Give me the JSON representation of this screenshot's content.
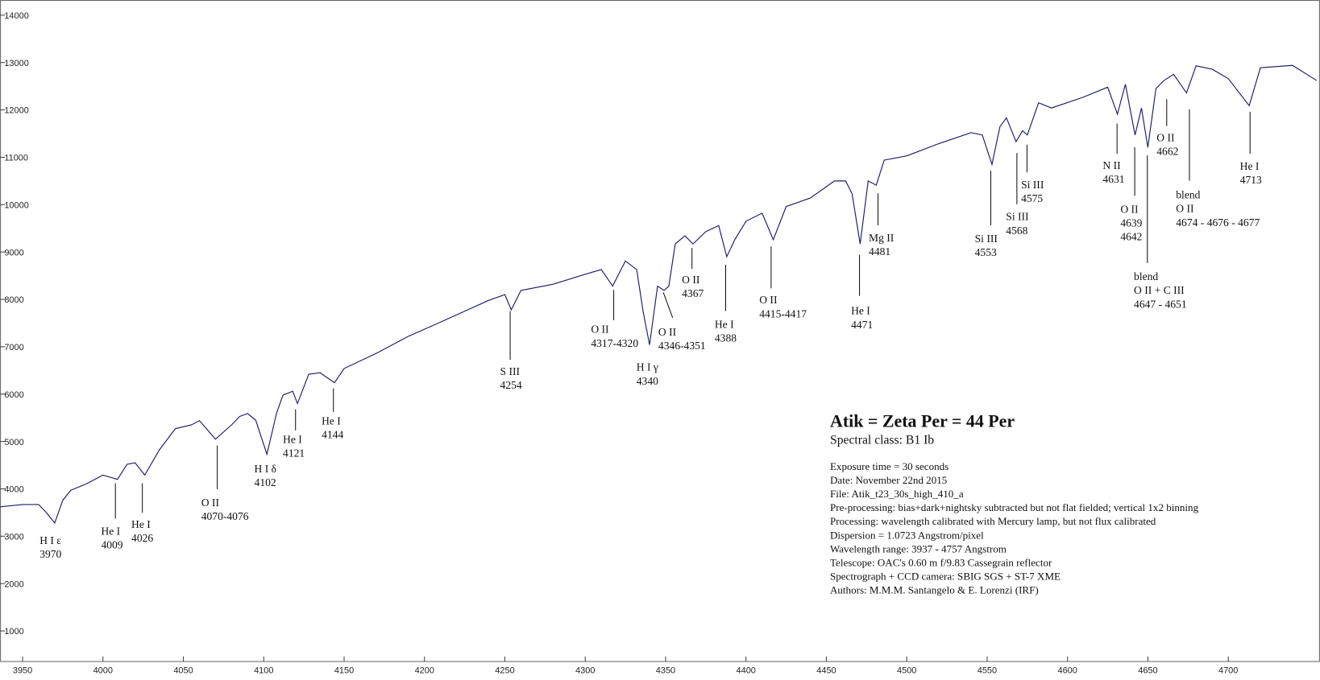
{
  "chart_data": {
    "type": "line",
    "title": "Atik = Zeta Per = 44 Per",
    "subtitle": "Spectral class:  B1 Ib",
    "notes": [
      "Exposure time = 30 seconds",
      "Date:  November 22nd 2015",
      "File:  Atik_t23_30s_high_410_a",
      "Pre-processing:  bias+dark+nightsky subtracted but not flat fielded; vertical 1x2 binning",
      "Processing:  wavelength calibrated with Mercury lamp, but not flux calibrated",
      "Dispersion = 1.0723 Angstrom/pixel",
      "Wavelength range:  3937 - 4757 Angstrom",
      "Telescope:  OAC's 0.60 m f/9.83 Cassegrain reflector",
      "Spectrograph + CCD camera:  SBIG SGS + ST-7 XME",
      "Authors:  M.M.M. Santangelo & E. Lorenzi (IRF)"
    ],
    "color": "#1c1c6a",
    "xlim": [
      3936,
      4757
    ],
    "ylim": [
      355,
      14320
    ],
    "xticks": [
      3950,
      4000,
      4050,
      4100,
      4150,
      4200,
      4250,
      4300,
      4350,
      4400,
      4450,
      4500,
      4550,
      4600,
      4650,
      4700
    ],
    "yticks": [
      1000,
      2000,
      3000,
      4000,
      5000,
      6000,
      7000,
      8000,
      9000,
      10000,
      11000,
      12000,
      13000,
      14000
    ],
    "x": [
      3936,
      3950,
      3960,
      3965,
      3970,
      3975,
      3980,
      3990,
      4000,
      4009,
      4015,
      4020,
      4026,
      4035,
      4045,
      4055,
      4060,
      4070,
      4080,
      4085,
      4090,
      4095,
      4102,
      4108,
      4112,
      4118,
      4121,
      4128,
      4135,
      4144,
      4150,
      4170,
      4190,
      4210,
      4240,
      4250,
      4254,
      4260,
      4280,
      4300,
      4310,
      4317,
      4325,
      4332,
      4336,
      4340,
      4345,
      4349,
      4352,
      4356,
      4362,
      4367,
      4375,
      4383,
      4388,
      4393,
      4400,
      4410,
      4417,
      4425,
      4440,
      4455,
      4462,
      4466,
      4471,
      4476,
      4481,
      4486,
      4500,
      4520,
      4540,
      4547,
      4553,
      4558,
      4562,
      4568,
      4572,
      4575,
      4582,
      4590,
      4610,
      4625,
      4631,
      4636,
      4642,
      4646,
      4650,
      4655,
      4660,
      4666,
      4674,
      4680,
      4690,
      4700,
      4713,
      4720,
      4740,
      4755
    ],
    "values": [
      3620,
      3670,
      3670,
      3490,
      3280,
      3760,
      3970,
      4110,
      4290,
      4200,
      4520,
      4550,
      4290,
      4820,
      5270,
      5350,
      5440,
      5050,
      5350,
      5530,
      5590,
      5450,
      4730,
      5600,
      5980,
      6060,
      5800,
      6420,
      6450,
      6240,
      6540,
      6860,
      7220,
      7520,
      7980,
      8100,
      7780,
      8190,
      8320,
      8530,
      8630,
      8280,
      8810,
      8630,
      7750,
      7040,
      8280,
      8190,
      8280,
      9170,
      9340,
      9170,
      9430,
      9560,
      8900,
      9260,
      9650,
      9820,
      9260,
      9960,
      10140,
      10500,
      10500,
      10230,
      9170,
      10500,
      10410,
      10940,
      11030,
      11290,
      11520,
      11470,
      10850,
      11650,
      11830,
      11330,
      11560,
      11470,
      12150,
      12040,
      12270,
      12480,
      11910,
      12540,
      11470,
      12040,
      11210,
      12450,
      12620,
      12750,
      12360,
      12930,
      12860,
      12660,
      12090,
      12890,
      12940,
      12620
    ],
    "annotations": [
      {
        "lines": [
          "H I ε",
          "3970"
        ]
      },
      {
        "lines": [
          "He I",
          "4009"
        ]
      },
      {
        "lines": [
          "He I",
          "4026"
        ]
      },
      {
        "lines": [
          "O II",
          "4070-4076"
        ]
      },
      {
        "lines": [
          "H I δ",
          "4102"
        ]
      },
      {
        "lines": [
          "He I",
          "4121"
        ]
      },
      {
        "lines": [
          "He I",
          "4144"
        ]
      },
      {
        "lines": [
          "S III",
          "4254"
        ]
      },
      {
        "lines": [
          "O II",
          "4317-4320"
        ]
      },
      {
        "lines": [
          "H I γ",
          "4340"
        ]
      },
      {
        "lines": [
          "O II",
          "4346-4351"
        ]
      },
      {
        "lines": [
          "O II",
          "4367"
        ]
      },
      {
        "lines": [
          "He I",
          "4388"
        ]
      },
      {
        "lines": [
          "O II",
          "4415-4417"
        ]
      },
      {
        "lines": [
          "He I",
          "4471"
        ]
      },
      {
        "lines": [
          "Mg II",
          "4481"
        ]
      },
      {
        "lines": [
          "Si III",
          "4553"
        ]
      },
      {
        "lines": [
          "Si III",
          "4568"
        ]
      },
      {
        "lines": [
          "Si III",
          "4575"
        ]
      },
      {
        "lines": [
          "N II",
          "4631"
        ]
      },
      {
        "lines": [
          "O II",
          "4639",
          "4642"
        ]
      },
      {
        "lines": [
          "blend",
          "O II + C III",
          "4647 - 4651"
        ]
      },
      {
        "lines": [
          "O II",
          "4662"
        ]
      },
      {
        "lines": [
          "blend",
          "O II",
          "4674 - 4676 - 4677"
        ]
      },
      {
        "lines": [
          "He I",
          "4713"
        ]
      }
    ]
  }
}
